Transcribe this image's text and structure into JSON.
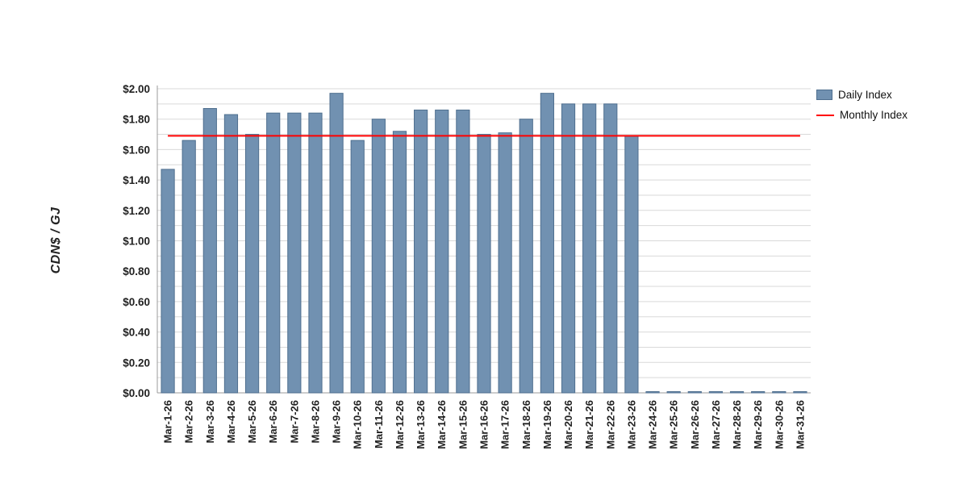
{
  "chart_data": {
    "type": "bar",
    "title": "",
    "xlabel": "",
    "ylabel": "CDN$ / GJ",
    "ylim": [
      0,
      2.0
    ],
    "y_tick_step": 0.2,
    "y_minor_step": 0.1,
    "y_tick_prefix": "$",
    "grid": true,
    "legend_position": "top-right",
    "categories": [
      "Mar-1-26",
      "Mar-2-26",
      "Mar-3-26",
      "Mar-4-26",
      "Mar-5-26",
      "Mar-6-26",
      "Mar-7-26",
      "Mar-8-26",
      "Mar-9-26",
      "Mar-10-26",
      "Mar-11-26",
      "Mar-12-26",
      "Mar-13-26",
      "Mar-14-26",
      "Mar-15-26",
      "Mar-16-26",
      "Mar-17-26",
      "Mar-18-26",
      "Mar-19-26",
      "Mar-20-26",
      "Mar-21-26",
      "Mar-22-26",
      "Mar-23-26",
      "Mar-24-26",
      "Mar-25-26",
      "Mar-26-26",
      "Mar-27-26",
      "Mar-28-26",
      "Mar-29-26",
      "Mar-30-26",
      "Mar-31-26"
    ],
    "series": [
      {
        "name": "Daily Index",
        "type": "bar",
        "values": [
          1.47,
          1.66,
          1.87,
          1.83,
          1.7,
          1.84,
          1.84,
          1.84,
          1.97,
          1.66,
          1.8,
          1.72,
          1.86,
          1.86,
          1.86,
          1.7,
          1.71,
          1.8,
          1.97,
          1.9,
          1.9,
          1.9,
          1.69,
          0,
          0,
          0,
          0,
          0,
          0,
          0,
          0
        ]
      },
      {
        "name": "Monthly Index",
        "type": "line",
        "value": 1.69
      }
    ],
    "colors": {
      "bar": "#7191b1",
      "bar_border": "#4f6f8f",
      "monthly_line": "#ff0000",
      "grid": "#d9d9d9",
      "axis": "#9b9b9b",
      "text": "#222222"
    }
  }
}
